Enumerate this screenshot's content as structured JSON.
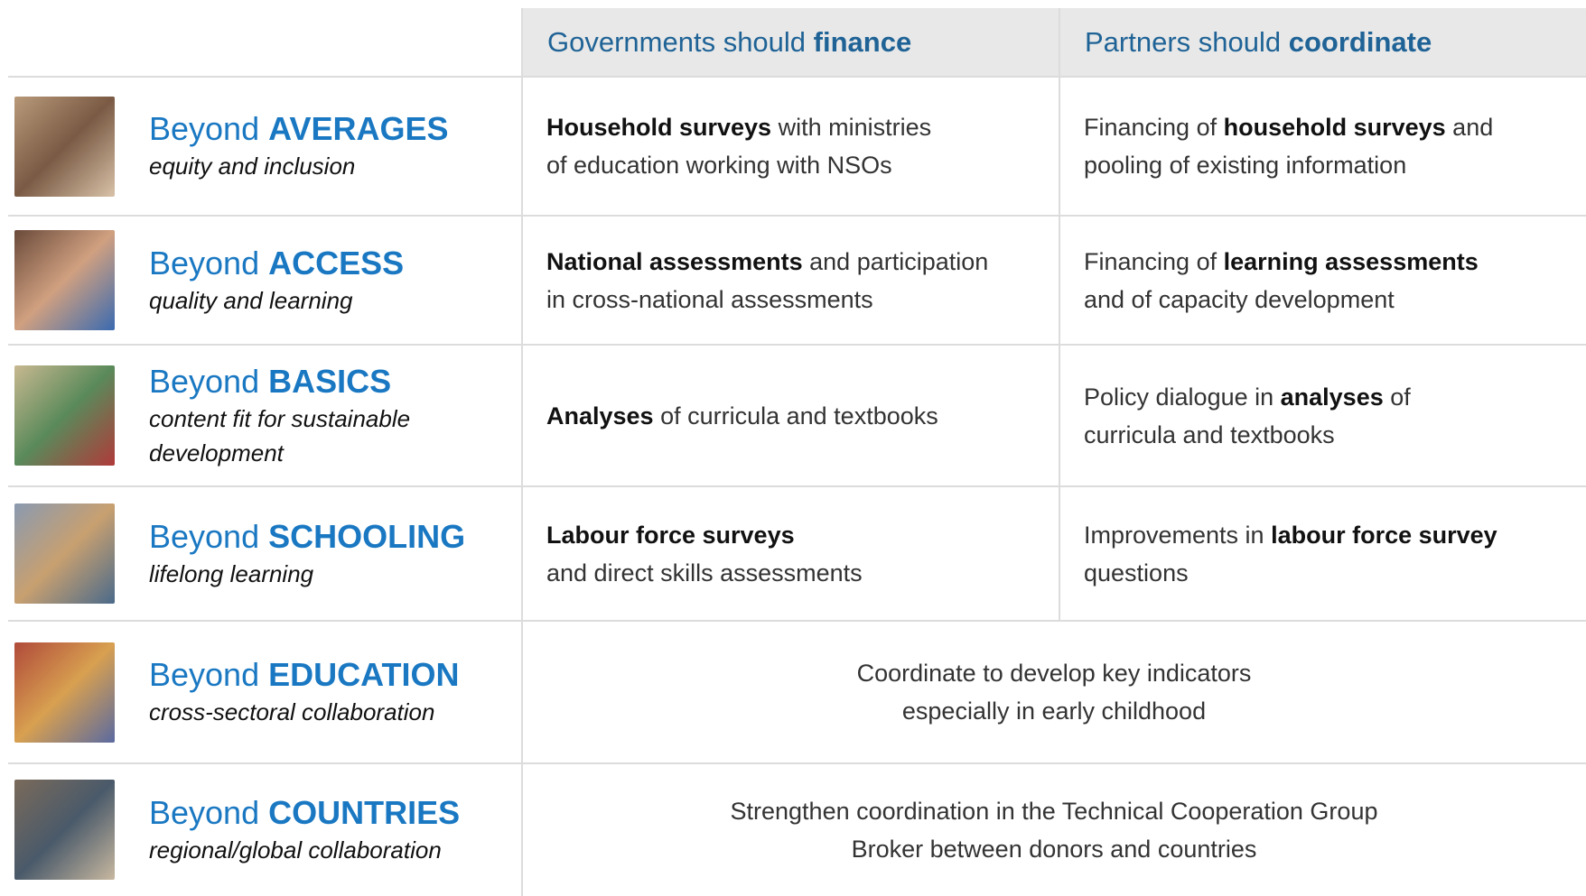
{
  "header": {
    "columns": [
      [
        {
          "text": "Governments should "
        },
        {
          "text": "finance",
          "bold": true
        }
      ],
      [
        {
          "text": "Partners should "
        },
        {
          "text": "coordinate",
          "bold": true
        }
      ]
    ]
  },
  "rows": [
    {
      "prefix": "Beyond",
      "keyword": "AVERAGES",
      "subtitle": "equity and inclusion",
      "cells": [
        [
          [
            {
              "text": "Household surveys",
              "bold": true
            },
            {
              "text": " with ministries"
            }
          ],
          [
            {
              "text": "of education working with NSOs"
            }
          ]
        ],
        [
          [
            {
              "text": "Financing of "
            },
            {
              "text": "household surveys",
              "bold": true
            },
            {
              "text": " and"
            }
          ],
          [
            {
              "text": "pooling of existing information"
            }
          ]
        ]
      ]
    },
    {
      "prefix": "Beyond",
      "keyword": "ACCESS",
      "subtitle": "quality and learning",
      "cells": [
        [
          [
            {
              "text": "National assessments",
              "bold": true
            },
            {
              "text": " and participation"
            }
          ],
          [
            {
              "text": "in cross-national assessments"
            }
          ]
        ],
        [
          [
            {
              "text": "Financing of "
            },
            {
              "text": "learning assessments",
              "bold": true
            }
          ],
          [
            {
              "text": "and of capacity development"
            }
          ]
        ]
      ]
    },
    {
      "prefix": "Beyond",
      "keyword": "BASICS",
      "subtitle": "content fit for sustainable development",
      "cells": [
        [
          [
            {
              "text": "Analyses",
              "bold": true
            },
            {
              "text": " of curricula and textbooks"
            }
          ]
        ],
        [
          [
            {
              "text": "Policy dialogue in "
            },
            {
              "text": "analyses",
              "bold": true
            },
            {
              "text": " of"
            }
          ],
          [
            {
              "text": "curricula and textbooks"
            }
          ]
        ]
      ]
    },
    {
      "prefix": "Beyond",
      "keyword": "SCHOOLING",
      "subtitle": "lifelong learning",
      "cells": [
        [
          [
            {
              "text": "Labour force surveys",
              "bold": true
            }
          ],
          [
            {
              "text": "and direct skills assessments"
            }
          ]
        ],
        [
          [
            {
              "text": "Improvements in "
            },
            {
              "text": "labour force survey",
              "bold": true
            }
          ],
          [
            {
              "text": "questions"
            }
          ]
        ]
      ]
    },
    {
      "prefix": "Beyond",
      "keyword": "EDUCATION",
      "subtitle": "cross-sectoral collaboration",
      "cells": [
        [
          [
            {
              "text": "Coordinate to develop key indicators"
            }
          ],
          [
            {
              "text": "especially in early childhood"
            }
          ]
        ]
      ]
    },
    {
      "prefix": "Beyond",
      "keyword": "COUNTRIES",
      "subtitle": "regional/global collaboration",
      "cells": [
        [
          [
            {
              "text": "Strengthen coordination in the Technical Cooperation Group"
            }
          ],
          [
            {
              "text": "Broker between donors and countries"
            }
          ]
        ]
      ]
    }
  ]
}
